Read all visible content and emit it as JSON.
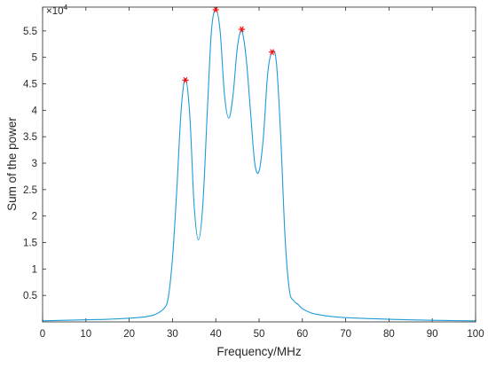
{
  "chart_data": {
    "type": "line",
    "xlabel": "Frequency/MHz",
    "ylabel": "Sum of the power",
    "y_exponent_base": "×10",
    "y_exponent_power": "4",
    "xlim": [
      0,
      100
    ],
    "ylim": [
      0,
      5.95
    ],
    "xticks": [
      0,
      10,
      20,
      30,
      40,
      50,
      60,
      70,
      80,
      90,
      100
    ],
    "xtick_labels": [
      "0",
      "10",
      "20",
      "30",
      "40",
      "50",
      "60",
      "70",
      "80",
      "90",
      "100"
    ],
    "yticks": [
      0.5,
      1,
      1.5,
      2,
      2.5,
      3,
      3.5,
      4,
      4.5,
      5,
      5.5
    ],
    "ytick_labels": [
      "0.5",
      "1",
      "1.5",
      "2",
      "2.5",
      "3",
      "3.5",
      "4",
      "4.5",
      "5",
      "5.5"
    ],
    "grid": false,
    "series": [
      {
        "color": "#1f9bd7",
        "x": [
          0,
          5,
          10,
          15,
          20,
          24,
          26,
          28,
          29,
          30,
          31,
          32,
          33,
          34,
          35,
          36,
          37,
          38,
          39,
          40,
          41,
          42,
          43,
          44,
          45,
          46,
          47,
          48,
          49,
          50,
          51,
          52,
          53,
          54,
          55,
          56,
          57,
          58,
          59,
          60,
          62,
          63,
          65,
          70,
          80,
          90,
          100
        ],
        "y": [
          0.02,
          0.03,
          0.04,
          0.05,
          0.07,
          0.1,
          0.14,
          0.25,
          0.45,
          1.2,
          2.5,
          4.0,
          4.6,
          3.9,
          2.2,
          1.55,
          2.2,
          3.9,
          5.5,
          5.9,
          5.5,
          4.3,
          3.85,
          4.3,
          5.2,
          5.5,
          5.0,
          4.0,
          3.0,
          2.85,
          3.5,
          4.7,
          5.1,
          4.9,
          3.5,
          1.6,
          0.6,
          0.4,
          0.33,
          0.25,
          0.17,
          0.15,
          0.12,
          0.08,
          0.05,
          0.03,
          0.02
        ]
      }
    ],
    "peaks": {
      "color": "#ff0000",
      "marker": "*",
      "points": [
        {
          "x": 33,
          "y": 4.57
        },
        {
          "x": 40,
          "y": 5.9
        },
        {
          "x": 46,
          "y": 5.53
        },
        {
          "x": 53,
          "y": 5.1
        }
      ]
    }
  }
}
